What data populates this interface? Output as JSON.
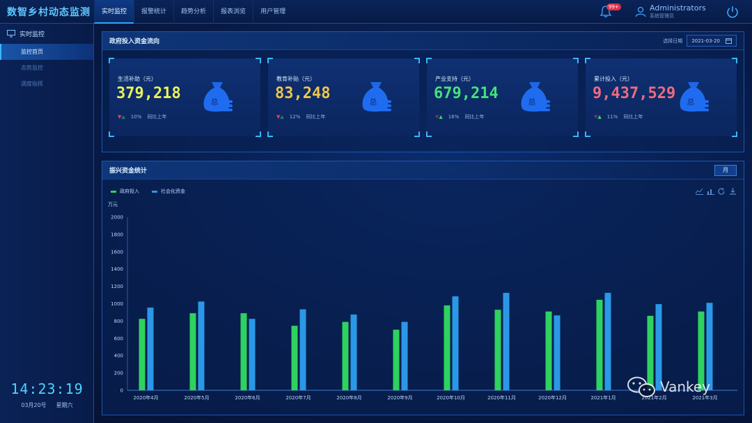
{
  "header": {
    "app_title": "数智乡村动态监测",
    "nav": [
      "实时监控",
      "报警统计",
      "趋势分析",
      "报表浏览",
      "用户管理"
    ],
    "notifications_badge": "99+",
    "user_name": "Administrators",
    "user_role": "系统管理员"
  },
  "sidebar": {
    "section_title": "实时监控",
    "items": [
      "监控首页",
      "态势监控",
      "调度指挥"
    ]
  },
  "clock": {
    "time": "14:23:19",
    "date": "03月20号",
    "weekday": "星期六"
  },
  "fund_panel": {
    "title": "政府投入资金流向",
    "date_label": "选择日期",
    "date_value": "2021-03-20",
    "cards": [
      {
        "label": "生活补助（元）",
        "value": "379,218",
        "trend": "down",
        "pct": "10%",
        "compare": "同比上年",
        "color": "#e9f25a"
      },
      {
        "label": "教育补贴（元）",
        "value": "83,248",
        "trend": "down",
        "pct": "12%",
        "compare": "同比上年",
        "color": "#f0c64a"
      },
      {
        "label": "产业支持（元）",
        "value": "679,214",
        "trend": "up",
        "pct": "16%",
        "compare": "同比上年",
        "color": "#43e37a"
      },
      {
        "label": "累计投入（元）",
        "value": "9,437,529",
        "trend": "up",
        "pct": "11%",
        "compare": "同比上年",
        "color": "#f06b80"
      }
    ]
  },
  "stats_panel": {
    "title": "振兴资金统计",
    "tab_label": "月"
  },
  "chart_data": {
    "type": "bar",
    "ylabel": "万元",
    "ylim": [
      0,
      2000
    ],
    "yticks": [
      0,
      200,
      400,
      600,
      800,
      1000,
      1200,
      1400,
      1600,
      1800,
      2000
    ],
    "categories": [
      "2020年4月",
      "2020年5月",
      "2020年6月",
      "2020年7月",
      "2020年8月",
      "2020年9月",
      "2020年10月",
      "2020年11月",
      "2020年12月",
      "2021年1月",
      "2021年2月",
      "2021年3月"
    ],
    "series": [
      {
        "name": "政府投入",
        "color": "#2ed25e",
        "values": [
          825,
          890,
          890,
          745,
          790,
          700,
          980,
          930,
          910,
          1045,
          860,
          910
        ]
      },
      {
        "name": "社会化资金",
        "color": "#2a98e6",
        "values": [
          955,
          1025,
          825,
          935,
          875,
          790,
          1085,
          1125,
          865,
          1125,
          995,
          1010
        ]
      }
    ],
    "grid": false,
    "legend": "top-left"
  },
  "watermark": "Vankey"
}
